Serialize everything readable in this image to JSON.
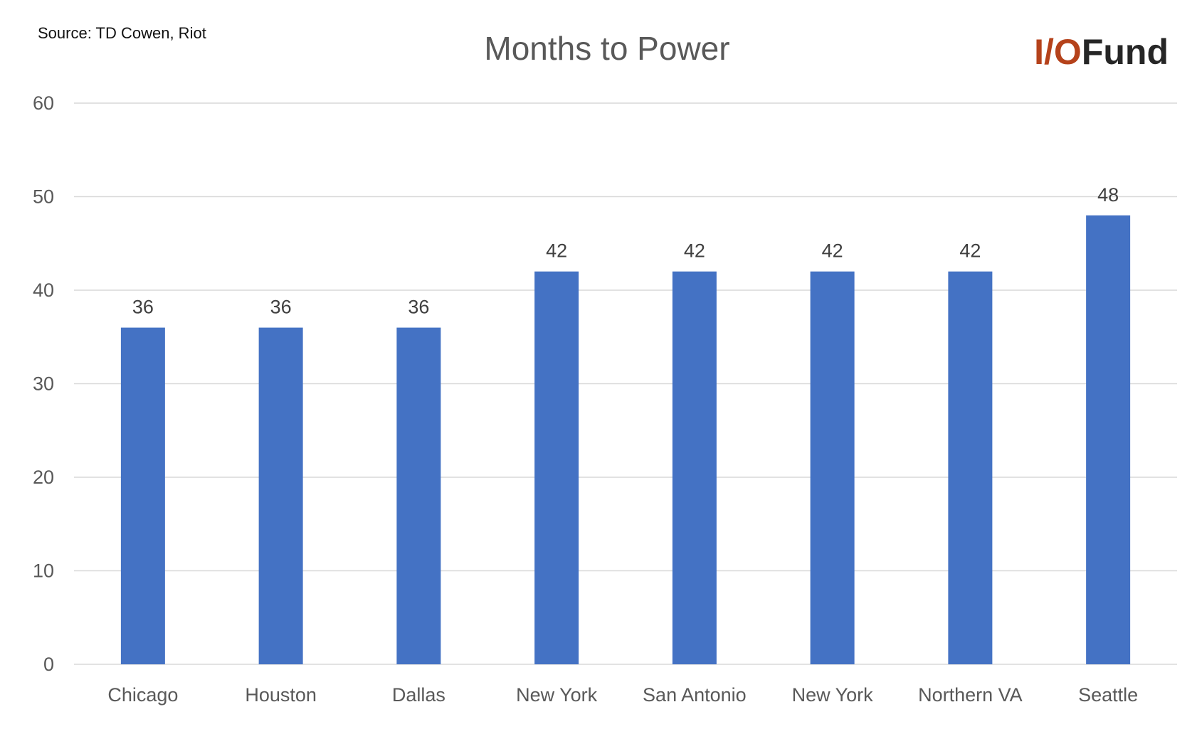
{
  "source_note": "Source: TD Cowen, Riot",
  "logo": {
    "io": "I/O",
    "fund": "Fund",
    "io_color": "#b5421b",
    "fund_color": "#262626"
  },
  "colors": {
    "bar": "#4472c4",
    "grid": "#d9d9d9",
    "text": "#595959"
  },
  "chart_data": {
    "type": "bar",
    "title": "Months to Power",
    "categories": [
      "Chicago",
      "Houston",
      "Dallas",
      "New York",
      "San Antonio",
      "New York",
      "Northern VA",
      "Seattle"
    ],
    "values": [
      36,
      36,
      36,
      42,
      42,
      42,
      42,
      48
    ],
    "ylim": [
      0,
      60
    ],
    "yticks": [
      0,
      10,
      20,
      30,
      40,
      50,
      60
    ],
    "grid": true,
    "legend": "none",
    "data_labels": true
  }
}
